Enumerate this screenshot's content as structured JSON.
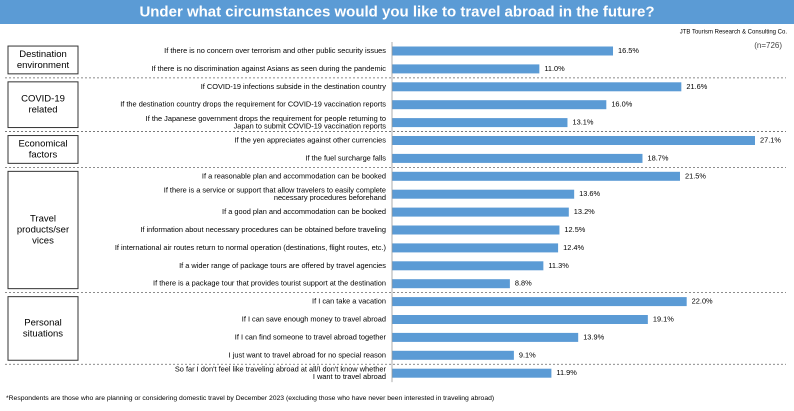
{
  "chart_data": {
    "type": "bar",
    "title": "Under what circumstances would you like to travel abroad in the future?",
    "source": "JTB Tourism Research & Consulting Co.",
    "sample": "(n=726)",
    "note": "*Respondents are those who are planning or considering domestic travel by December 2023 (excluding those who have never been interested in traveling abroad)",
    "color": "#5b9bd5",
    "groups": [
      {
        "label": [
          "Destination",
          "environment"
        ],
        "categories": [
          [
            "If there is no concern over terrorism and other public security issues"
          ],
          [
            "If there is no discrimination against Asians as seen during the pandemic"
          ]
        ],
        "values": [
          16.5,
          11.0
        ],
        "value_labels": [
          "16.5%",
          "11.0%"
        ]
      },
      {
        "label": [
          "COVID-19",
          "related"
        ],
        "categories": [
          [
            "If COVID-19 infections subside in the destination country"
          ],
          [
            "If the destination country drops the requirement for COVID-19 vaccination reports"
          ],
          [
            "If the Japanese government drops the requirement for people returning to",
            "Japan to submit COVID-19 vaccination reports"
          ]
        ],
        "values": [
          21.6,
          16.0,
          13.1
        ],
        "value_labels": [
          "21.6%",
          "16.0%",
          "13.1%"
        ]
      },
      {
        "label": [
          "Economical",
          "factors"
        ],
        "categories": [
          [
            "If the yen appreciates against other currencies"
          ],
          [
            "If the fuel surcharge falls"
          ]
        ],
        "values": [
          27.1,
          18.7
        ],
        "value_labels": [
          "27.1%",
          "18.7%"
        ]
      },
      {
        "label": [
          "Travel",
          "products/ser",
          "vices"
        ],
        "categories": [
          [
            "If a reasonable plan and accommodation can be booked"
          ],
          [
            "If there is a service or support that allow travelers to easily complete",
            "necessary procedures beforehand"
          ],
          [
            "If a good plan and accommodation can be booked"
          ],
          [
            "If information about necessary procedures can be obtained before traveling"
          ],
          [
            "If international air routes return to normal operation (destinations, flight routes, etc.)"
          ],
          [
            "If a wider range of package tours are offered by travel agencies"
          ],
          [
            "If there is a package tour that provides tourist support at the destination"
          ]
        ],
        "values": [
          21.5,
          13.6,
          13.2,
          12.5,
          12.4,
          11.3,
          8.8
        ],
        "value_labels": [
          "21.5%",
          "13.6%",
          "13.2%",
          "12.5%",
          "12.4%",
          "11.3%",
          "8.8%"
        ]
      },
      {
        "label": [
          "Personal",
          "situations"
        ],
        "categories": [
          [
            "If I can take a vacation"
          ],
          [
            "If I can save enough money to travel abroad"
          ],
          [
            "If I can find someone to travel abroad together"
          ],
          [
            "I just want to travel abroad for no special reason"
          ]
        ],
        "values": [
          22.0,
          19.1,
          13.9,
          9.1
        ],
        "value_labels": [
          "22.0%",
          "19.1%",
          "13.9%",
          "9.1%"
        ]
      },
      {
        "label": null,
        "categories": [
          [
            "So far I don't feel like traveling abroad at all/I don't know whether",
            "I want to travel abroad"
          ]
        ],
        "values": [
          11.9
        ],
        "value_labels": [
          "11.9%"
        ]
      }
    ]
  }
}
